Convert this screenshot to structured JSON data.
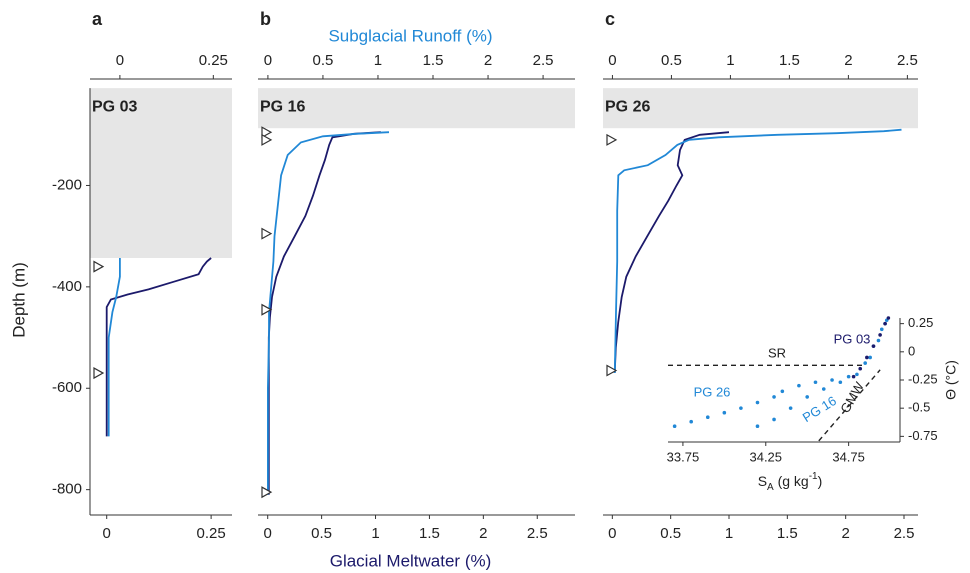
{
  "chart_data": [
    {
      "type": "line",
      "panel_label": "a",
      "station": "PG 03",
      "ylabel": "Depth (m)",
      "ylim": [
        -850,
        10
      ],
      "yticks": [
        -200,
        -400,
        -600,
        -800
      ],
      "xlim": [
        -0.04,
        0.3
      ],
      "xticks": [
        0,
        0.25
      ],
      "x2lim": [
        -0.08,
        0.3
      ],
      "x2ticks": [
        0,
        0.25
      ],
      "shade": [
        -8,
        -343
      ],
      "markers": [
        -360,
        -570
      ],
      "series": [
        {
          "color": "#1c1a6b",
          "axis": "x",
          "depth": [
            -343,
            -350,
            -360,
            -375,
            -390,
            -405,
            -415,
            -425,
            -440,
            -480,
            -550,
            -620,
            -695
          ],
          "values": [
            0.25,
            0.24,
            0.23,
            0.22,
            0.16,
            0.1,
            0.05,
            0.01,
            0,
            0,
            0,
            0,
            0
          ]
        },
        {
          "color": "#2188d6",
          "axis": "x2",
          "depth": [
            -343,
            -380,
            -420,
            -450,
            -500,
            -600,
            -695
          ],
          "values": [
            0,
            0,
            -0.01,
            -0.02,
            -0.03,
            -0.03,
            -0.03
          ]
        }
      ]
    },
    {
      "type": "line",
      "panel_label": "b",
      "station": "PG 16",
      "xlabel": "Glacial Meltwater (%)",
      "x2label": "Subglacial Runoff (%)",
      "ylim": [
        -850,
        10
      ],
      "xlim": [
        -0.09,
        2.85
      ],
      "xticks": [
        0,
        0.5,
        1,
        1.5,
        2,
        2.5
      ],
      "x2lim": [
        -0.09,
        2.79
      ],
      "x2ticks": [
        0,
        0.5,
        1,
        1.5,
        2,
        2.5
      ],
      "shade": [
        -8,
        -87
      ],
      "markers": [
        -95,
        -110,
        -295,
        -445,
        -805
      ],
      "series": [
        {
          "color": "#1c1a6b",
          "axis": "x",
          "depth": [
            -95,
            -98,
            -105,
            -120,
            -150,
            -180,
            -220,
            -260,
            -300,
            -340,
            -380,
            -420,
            -460,
            -500,
            -600,
            -700,
            -810
          ],
          "values": [
            1.05,
            0.8,
            0.6,
            0.57,
            0.53,
            0.48,
            0.42,
            0.35,
            0.25,
            0.15,
            0.08,
            0.04,
            0.02,
            0.01,
            0.01,
            0.01,
            0.01
          ]
        },
        {
          "color": "#2188d6",
          "axis": "x2",
          "depth": [
            -95,
            -98,
            -103,
            -115,
            -140,
            -180,
            -220,
            -260,
            -300,
            -350,
            -400,
            -450,
            -500,
            -600,
            -700,
            -810
          ],
          "values": [
            1.1,
            0.8,
            0.5,
            0.3,
            0.18,
            0.12,
            0.1,
            0.08,
            0.06,
            0.05,
            0.03,
            0.01,
            0.01,
            0,
            0,
            0
          ]
        }
      ]
    },
    {
      "type": "line",
      "panel_label": "c",
      "station": "PG 26",
      "ylim": [
        -850,
        10
      ],
      "xlim": [
        -0.08,
        2.62
      ],
      "xticks": [
        0,
        0.5,
        1,
        1.5,
        2,
        2.5
      ],
      "x2lim": [
        -0.08,
        2.59
      ],
      "x2ticks": [
        0,
        0.5,
        1,
        1.5,
        2,
        2.5
      ],
      "shade": [
        -8,
        -87
      ],
      "markers": [
        -110,
        -565
      ],
      "series": [
        {
          "color": "#1c1a6b",
          "axis": "x",
          "depth": [
            -95,
            -100,
            -110,
            -130,
            -160,
            -180,
            -200,
            -230,
            -260,
            -300,
            -340,
            -380,
            -420,
            -470,
            -520,
            -570
          ],
          "values": [
            1.0,
            0.75,
            0.62,
            0.58,
            0.56,
            0.6,
            0.55,
            0.48,
            0.4,
            0.3,
            0.2,
            0.12,
            0.08,
            0.05,
            0.03,
            0.02
          ]
        },
        {
          "color": "#2188d6",
          "axis": "x2",
          "depth": [
            -90,
            -93,
            -97,
            -100,
            -105,
            -110,
            -120,
            -140,
            -160,
            -170,
            -180,
            -250,
            -350,
            -450,
            -570
          ],
          "values": [
            2.45,
            2.3,
            1.9,
            1.4,
            0.9,
            0.65,
            0.55,
            0.45,
            0.3,
            0.1,
            0.05,
            0.04,
            0.04,
            0.03,
            0.02
          ]
        }
      ]
    },
    {
      "type": "scatter",
      "xlabel": [
        "S",
        "A",
        " (g kg",
        "-1",
        ")"
      ],
      "ylabel": "Θ (°C)",
      "xlim": [
        33.66,
        35.06
      ],
      "xticks": [
        33.75,
        34.25,
        34.75
      ],
      "ylim": [
        -0.8,
        0.3
      ],
      "yticks": [
        0.25,
        0,
        -0.25,
        -0.5,
        -0.75
      ],
      "series": [
        {
          "name": "PG 26",
          "color": "#2188d6",
          "x": [
            33.7,
            33.8,
            33.9,
            34.0,
            34.1,
            34.2,
            34.3,
            34.35,
            34.45,
            34.55,
            34.65,
            34.75,
            34.85,
            34.9,
            34.95,
            34.98
          ],
          "y": [
            -0.66,
            -0.62,
            -0.58,
            -0.54,
            -0.5,
            -0.45,
            -0.4,
            -0.35,
            -0.3,
            -0.27,
            -0.25,
            -0.22,
            -0.1,
            0.05,
            0.2,
            0.28
          ]
        },
        {
          "name": "PG 16",
          "color": "#2188d6",
          "x": [
            34.2,
            34.3,
            34.4,
            34.5,
            34.6,
            34.7,
            34.8,
            34.88,
            34.93,
            34.97
          ],
          "y": [
            -0.66,
            -0.6,
            -0.5,
            -0.4,
            -0.33,
            -0.27,
            -0.2,
            -0.05,
            0.1,
            0.25
          ]
        },
        {
          "name": "PG 03",
          "color": "#1c1a6b",
          "x": [
            34.78,
            34.82,
            34.86,
            34.9,
            34.94,
            34.97,
            34.99
          ],
          "y": [
            -0.22,
            -0.15,
            -0.05,
            0.05,
            0.15,
            0.25,
            0.3
          ]
        }
      ],
      "reference_lines": [
        {
          "label": "SR",
          "x": [
            33.66,
            34.85
          ],
          "y": [
            -0.12,
            -0.12
          ]
        },
        {
          "label": "GMW",
          "x": [
            34.57,
            34.94
          ],
          "y": [
            -0.79,
            -0.16
          ]
        }
      ]
    }
  ]
}
